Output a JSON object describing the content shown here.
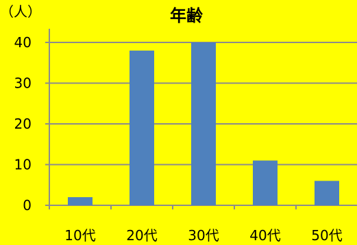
{
  "chart_data": {
    "type": "bar",
    "title": "年齢",
    "ylabel": "（人）",
    "xlabel": "",
    "categories": [
      "10代",
      "20代",
      "30代",
      "40代",
      "50代"
    ],
    "values": [
      2,
      38,
      40,
      11,
      6
    ],
    "ylim": [
      0,
      40
    ],
    "yticks": [
      0,
      10,
      20,
      30,
      40
    ],
    "grid": true,
    "legend": "none",
    "colors": {
      "background": "#ffff00",
      "bar": "#4f81bd",
      "grid": "#8c8c8c",
      "axis": "#8c8c8c",
      "text": "#000000"
    }
  }
}
